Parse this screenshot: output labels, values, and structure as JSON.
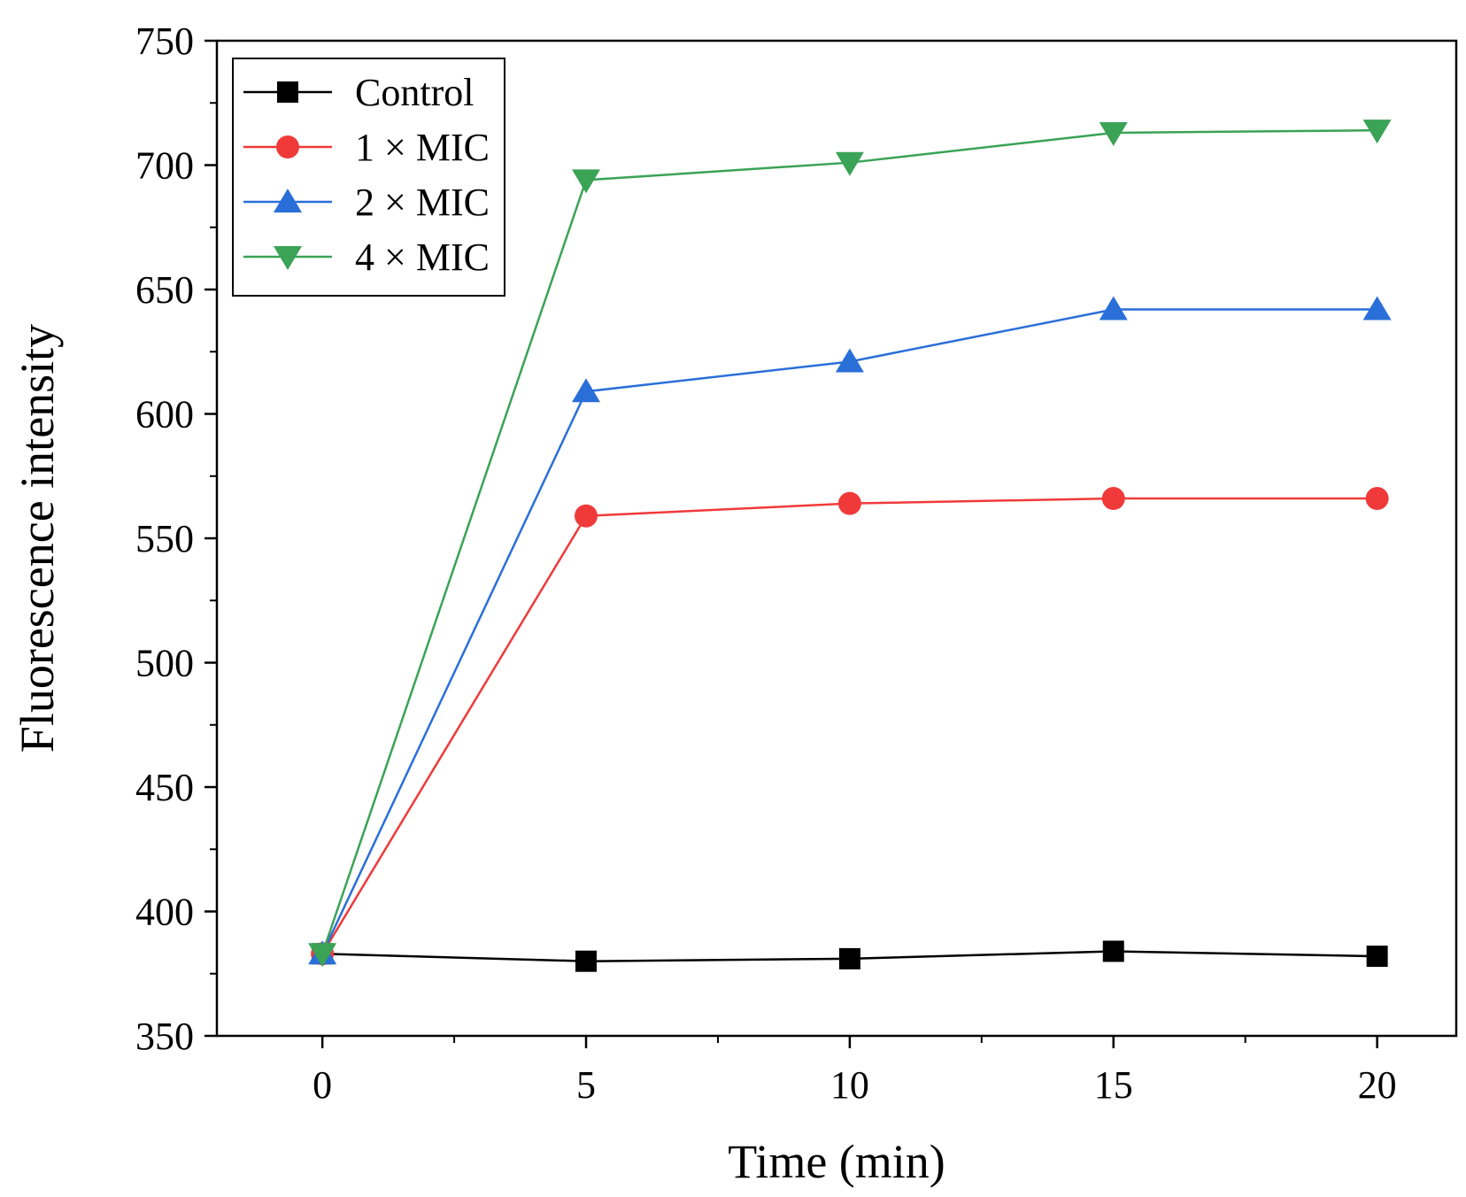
{
  "chart_data": {
    "type": "line",
    "title": "",
    "xlabel": "Time (min)",
    "ylabel": "Fluorescence intensity",
    "x": [
      0,
      5,
      10,
      15,
      20
    ],
    "xticks": [
      0,
      5,
      10,
      15,
      20
    ],
    "yticks": [
      350,
      400,
      450,
      500,
      550,
      600,
      650,
      700,
      750
    ],
    "xlim": [
      -2,
      21.5
    ],
    "ylim": [
      350,
      750
    ],
    "grid": false,
    "legend_position": "top-left",
    "series": [
      {
        "name": "Control",
        "color": "#000000",
        "marker": "square",
        "values": [
          383,
          380,
          381,
          384,
          382
        ]
      },
      {
        "name": "1 × MIC",
        "color": "#f03a3a",
        "marker": "circle",
        "values": [
          383,
          559,
          564,
          566,
          566
        ]
      },
      {
        "name": "2 × MIC",
        "color": "#2a6fd8",
        "marker": "triangle-up",
        "values": [
          383,
          609,
          621,
          642,
          642
        ]
      },
      {
        "name": "4 × MIC",
        "color": "#3aa356",
        "marker": "triangle-down",
        "values": [
          383,
          694,
          701,
          713,
          714
        ]
      }
    ]
  }
}
